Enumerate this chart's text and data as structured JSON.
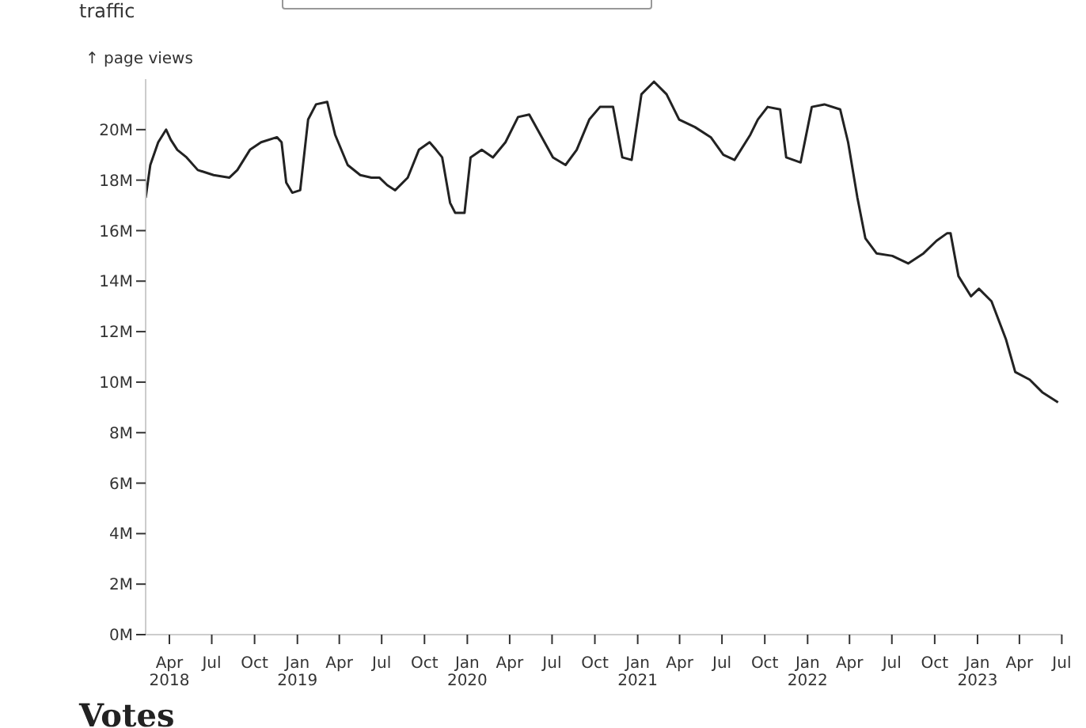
{
  "chart_data": {
    "type": "line",
    "ylabel": "↑ page views",
    "annotations": [
      "traffic",
      "Votes"
    ],
    "x": [
      "2018-02-09",
      "2018-02-19",
      "2018-03-08",
      "2018-03-25",
      "2018-04-04",
      "2018-04-18",
      "2018-05-08",
      "2018-06-01",
      "2018-07-05",
      "2018-08-08",
      "2018-08-25",
      "2018-09-21",
      "2018-10-15",
      "2018-11-18",
      "2018-11-28",
      "2018-12-08",
      "2018-12-21",
      "2019-01-07",
      "2019-01-24",
      "2019-02-10",
      "2019-03-06",
      "2019-03-23",
      "2019-04-19",
      "2019-05-16",
      "2019-06-09",
      "2019-06-26",
      "2019-07-13",
      "2019-07-30",
      "2019-08-26",
      "2019-09-19",
      "2019-10-12",
      "2019-10-26",
      "2019-11-08",
      "2019-11-25",
      "2019-12-06",
      "2019-12-26",
      "2020-01-08",
      "2020-02-01",
      "2020-02-25",
      "2020-03-23",
      "2020-04-19",
      "2020-05-13",
      "2020-06-06",
      "2020-07-03",
      "2020-07-30",
      "2020-08-23",
      "2020-09-19",
      "2020-10-12",
      "2020-11-09",
      "2020-11-29",
      "2020-12-19",
      "2021-01-09",
      "2021-02-05",
      "2021-03-04",
      "2021-03-31",
      "2021-05-04",
      "2021-06-07",
      "2021-07-04",
      "2021-07-28",
      "2021-08-31",
      "2021-09-16",
      "2021-10-07",
      "2021-11-03",
      "2021-11-16",
      "2021-12-17",
      "2022-01-10",
      "2022-02-06",
      "2022-03-12",
      "2022-03-29",
      "2022-04-18",
      "2022-05-05",
      "2022-05-29",
      "2022-07-02",
      "2022-08-05",
      "2022-09-07",
      "2022-10-05",
      "2022-10-28",
      "2022-11-04",
      "2022-11-21",
      "2022-12-18",
      "2023-01-04",
      "2023-01-31",
      "2023-03-03",
      "2023-03-23",
      "2023-04-23",
      "2023-05-20",
      "2023-06-23"
    ],
    "series": [
      {
        "color": "#222222",
        "values": [
          17.3,
          18.6,
          19.5,
          20.0,
          19.6,
          19.2,
          18.9,
          18.4,
          18.2,
          18.1,
          18.4,
          19.2,
          19.5,
          19.7,
          19.5,
          17.9,
          17.5,
          17.6,
          20.4,
          21.0,
          21.1,
          19.8,
          18.6,
          18.2,
          18.1,
          18.1,
          17.8,
          17.6,
          18.1,
          19.2,
          19.5,
          19.2,
          18.9,
          17.1,
          16.7,
          16.7,
          18.9,
          19.2,
          18.9,
          19.5,
          20.5,
          20.6,
          19.8,
          18.9,
          18.6,
          19.2,
          20.4,
          20.9,
          20.9,
          18.9,
          18.8,
          21.4,
          21.9,
          21.4,
          20.4,
          20.1,
          19.7,
          19.0,
          18.8,
          19.8,
          20.4,
          20.9,
          20.8,
          18.9,
          18.7,
          20.9,
          21.0,
          20.8,
          19.5,
          17.3,
          15.7,
          15.1,
          15.0,
          14.7,
          15.1,
          15.6,
          15.9,
          15.9,
          14.2,
          13.4,
          13.7,
          13.2,
          11.7,
          10.4,
          10.1,
          9.6,
          9.2
        ]
      }
    ],
    "xlim": [
      "2018-02-09",
      "2023-07-02"
    ],
    "xticks": [
      {
        "value": "2018-04-01",
        "label": "Apr 2018"
      },
      {
        "value": "2018-07-01",
        "label": "Jul"
      },
      {
        "value": "2018-10-01",
        "label": "Oct"
      },
      {
        "value": "2019-01-01",
        "label": "Jan 2019"
      },
      {
        "value": "2019-04-01",
        "label": "Apr"
      },
      {
        "value": "2019-07-01",
        "label": "Jul"
      },
      {
        "value": "2019-10-01",
        "label": "Oct"
      },
      {
        "value": "2020-01-01",
        "label": "Jan 2020"
      },
      {
        "value": "2020-04-01",
        "label": "Apr"
      },
      {
        "value": "2020-07-01",
        "label": "Jul"
      },
      {
        "value": "2020-10-01",
        "label": "Oct"
      },
      {
        "value": "2021-01-01",
        "label": "Jan 2021"
      },
      {
        "value": "2021-04-01",
        "label": "Apr"
      },
      {
        "value": "2021-07-01",
        "label": "Jul"
      },
      {
        "value": "2021-10-01",
        "label": "Oct"
      },
      {
        "value": "2022-01-01",
        "label": "Jan 2022"
      },
      {
        "value": "2022-04-01",
        "label": "Apr"
      },
      {
        "value": "2022-07-01",
        "label": "Jul"
      },
      {
        "value": "2022-10-01",
        "label": "Oct"
      },
      {
        "value": "2023-01-01",
        "label": "Jan 2023"
      },
      {
        "value": "2023-04-01",
        "label": "Apr"
      },
      {
        "value": "2023-07-01",
        "label": "Jul"
      }
    ],
    "ylim": [
      0,
      22
    ],
    "yticks": [
      {
        "value": 0,
        "label": "0M"
      },
      {
        "value": 2,
        "label": "2M"
      },
      {
        "value": 4,
        "label": "4M"
      },
      {
        "value": 6,
        "label": "6M"
      },
      {
        "value": 8,
        "label": "8M"
      },
      {
        "value": 10,
        "label": "10M"
      },
      {
        "value": 12,
        "label": "12M"
      },
      {
        "value": 14,
        "label": "14M"
      },
      {
        "value": 16,
        "label": "16M"
      },
      {
        "value": 18,
        "label": "18M"
      },
      {
        "value": 20,
        "label": "20M"
      }
    ],
    "grid": false,
    "legend": false,
    "marker": "none",
    "line_style": "solid"
  }
}
